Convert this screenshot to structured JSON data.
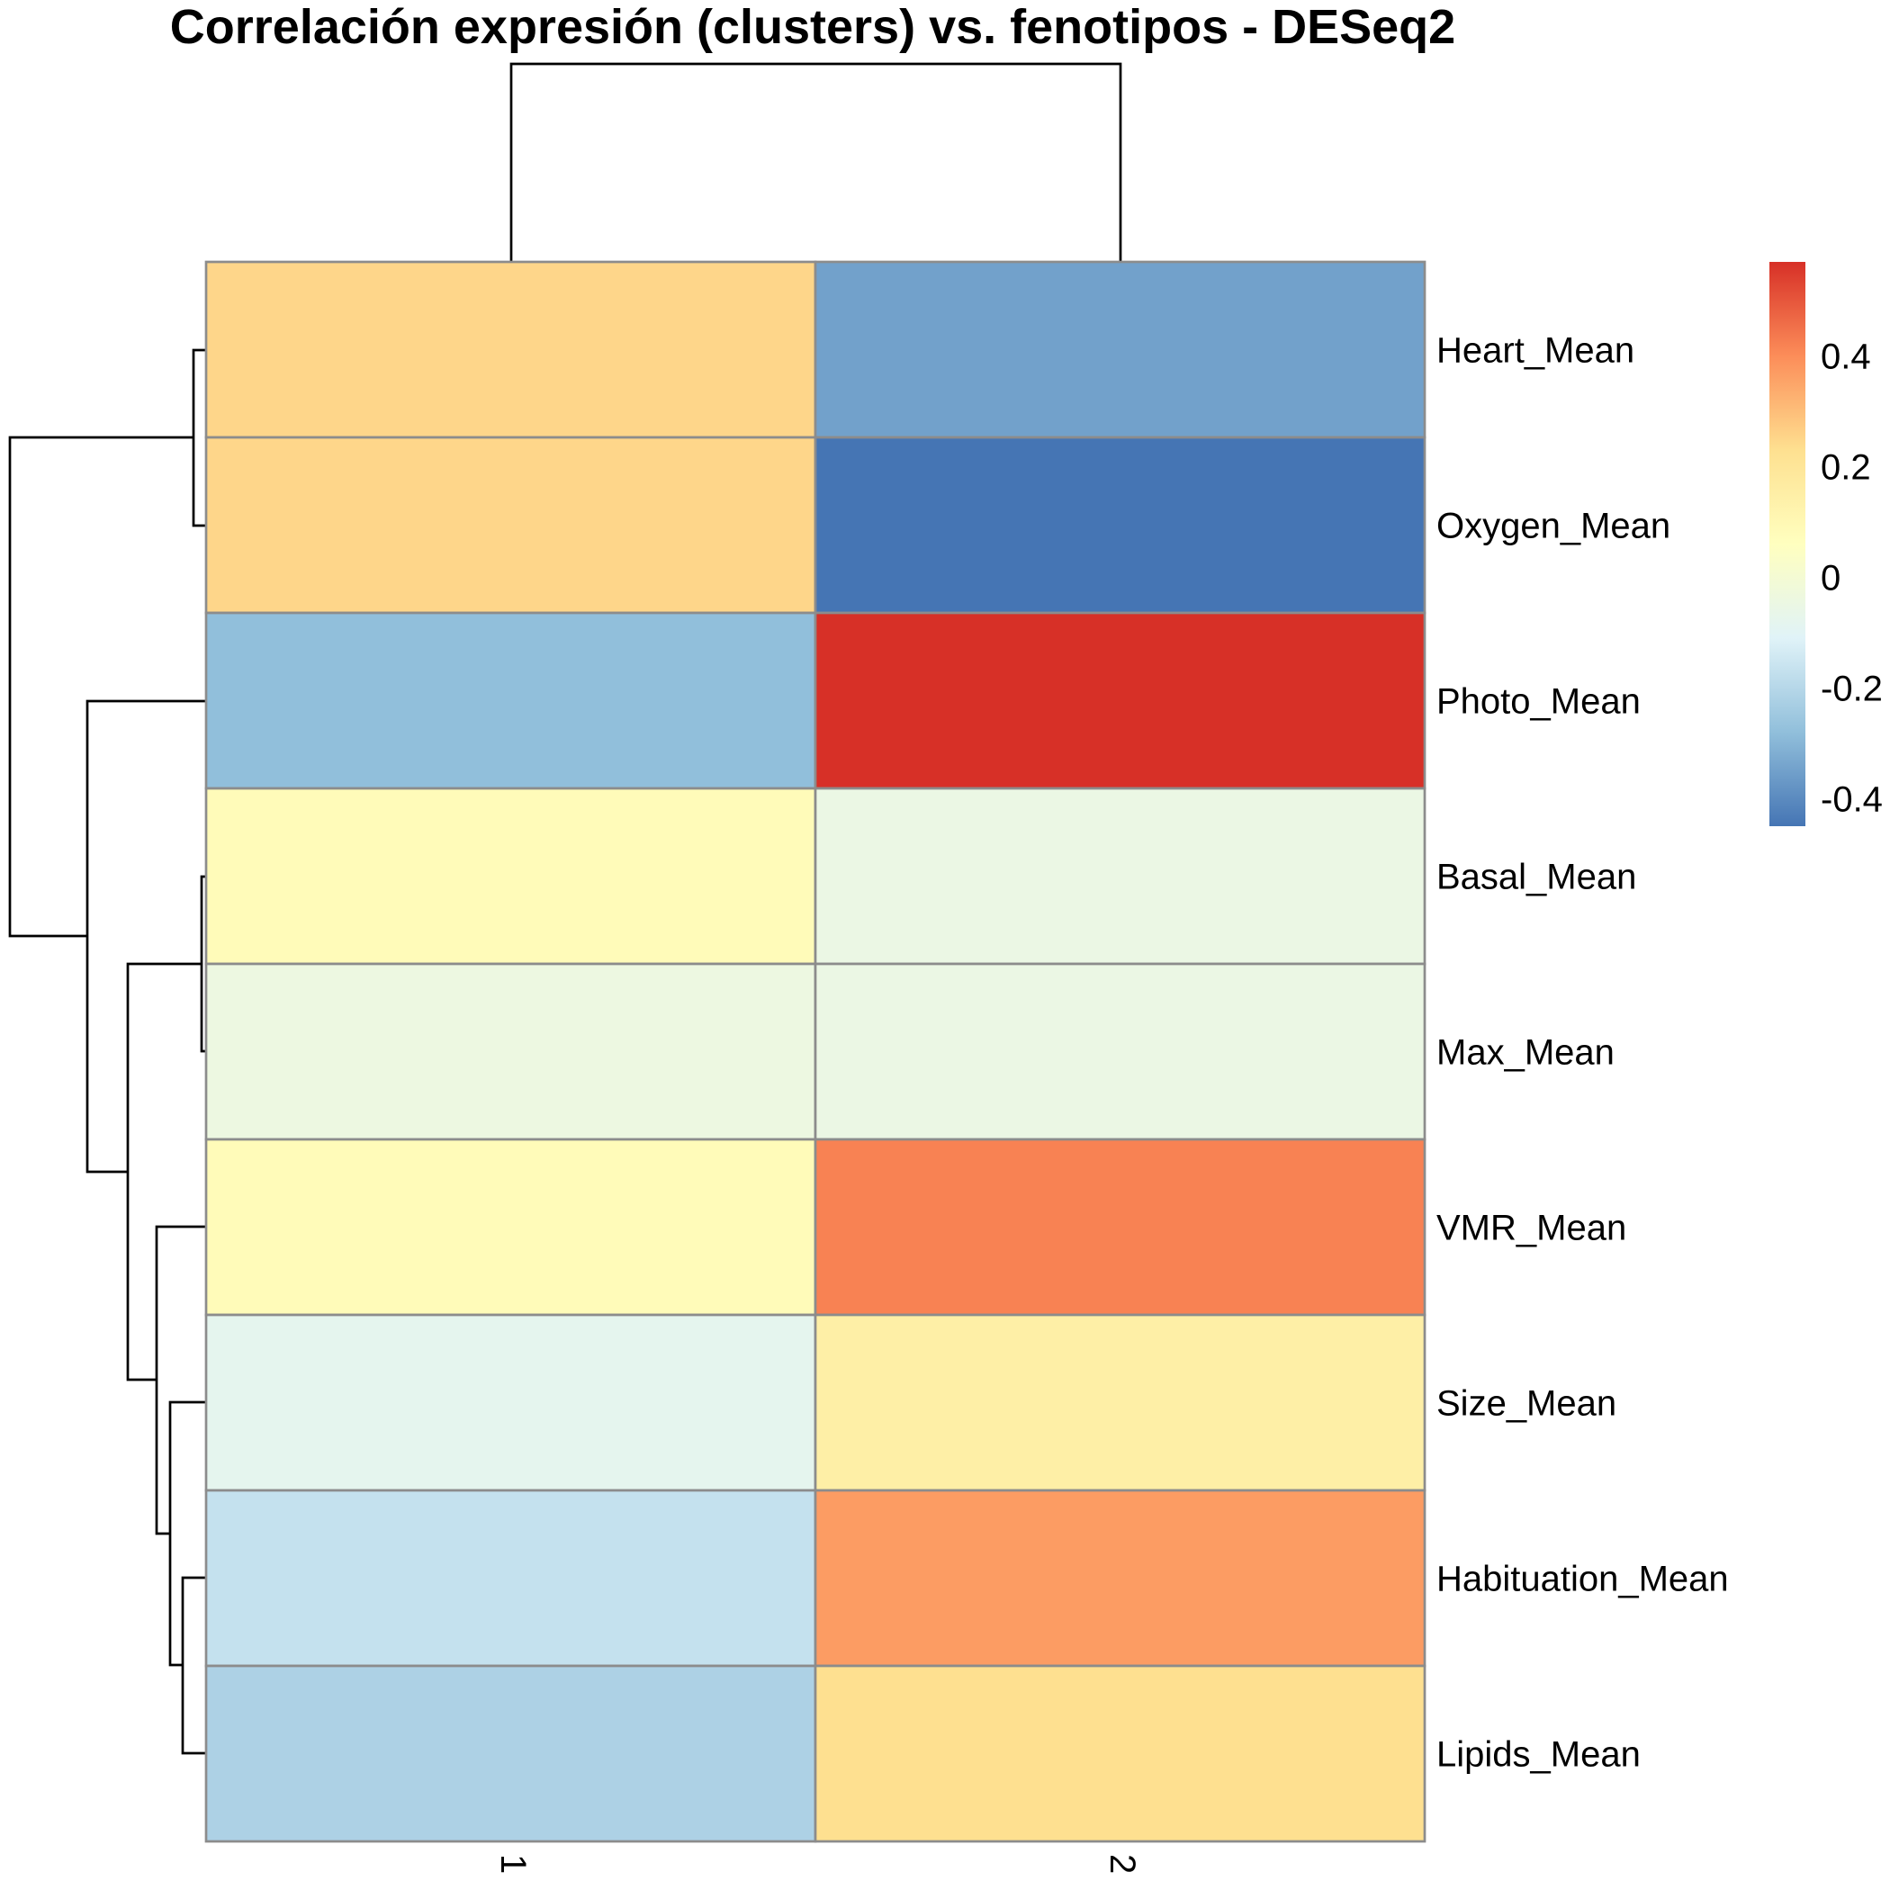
{
  "chart_data": {
    "type": "heatmap",
    "title": "Correlación expresión (clusters) vs. fenotipos - DESeq2",
    "columns": [
      "1",
      "2"
    ],
    "rows": [
      "Heart_Mean",
      "Oxygen_Mean",
      "Photo_Mean",
      "Basal_Mean",
      "Max_Mean",
      "VMR_Mean",
      "Size_Mean",
      "Habituation_Mean",
      "Lipids_Mean"
    ],
    "values": [
      [
        0.25,
        -0.35
      ],
      [
        0.25,
        -0.45
      ],
      [
        -0.28,
        0.57
      ],
      [
        0.08,
        -0.05
      ],
      [
        -0.04,
        -0.05
      ],
      [
        0.08,
        0.42
      ],
      [
        -0.08,
        0.15
      ],
      [
        -0.17,
        0.37
      ],
      [
        -0.22,
        0.23
      ]
    ],
    "colorbar": {
      "ticks": [
        "0.4",
        "0.2",
        "0",
        "-0.2",
        "-0.4"
      ],
      "tick_values": [
        0.4,
        0.2,
        0,
        -0.2,
        -0.4
      ],
      "range": [
        -0.45,
        0.57
      ],
      "colors": [
        "#4575b4",
        "#91bfdb",
        "#e0f3f8",
        "#ffffbf",
        "#fee090",
        "#fc8d59",
        "#d73027"
      ]
    },
    "row_dendrogram": true,
    "column_dendrogram": true,
    "legend_position": "right"
  }
}
